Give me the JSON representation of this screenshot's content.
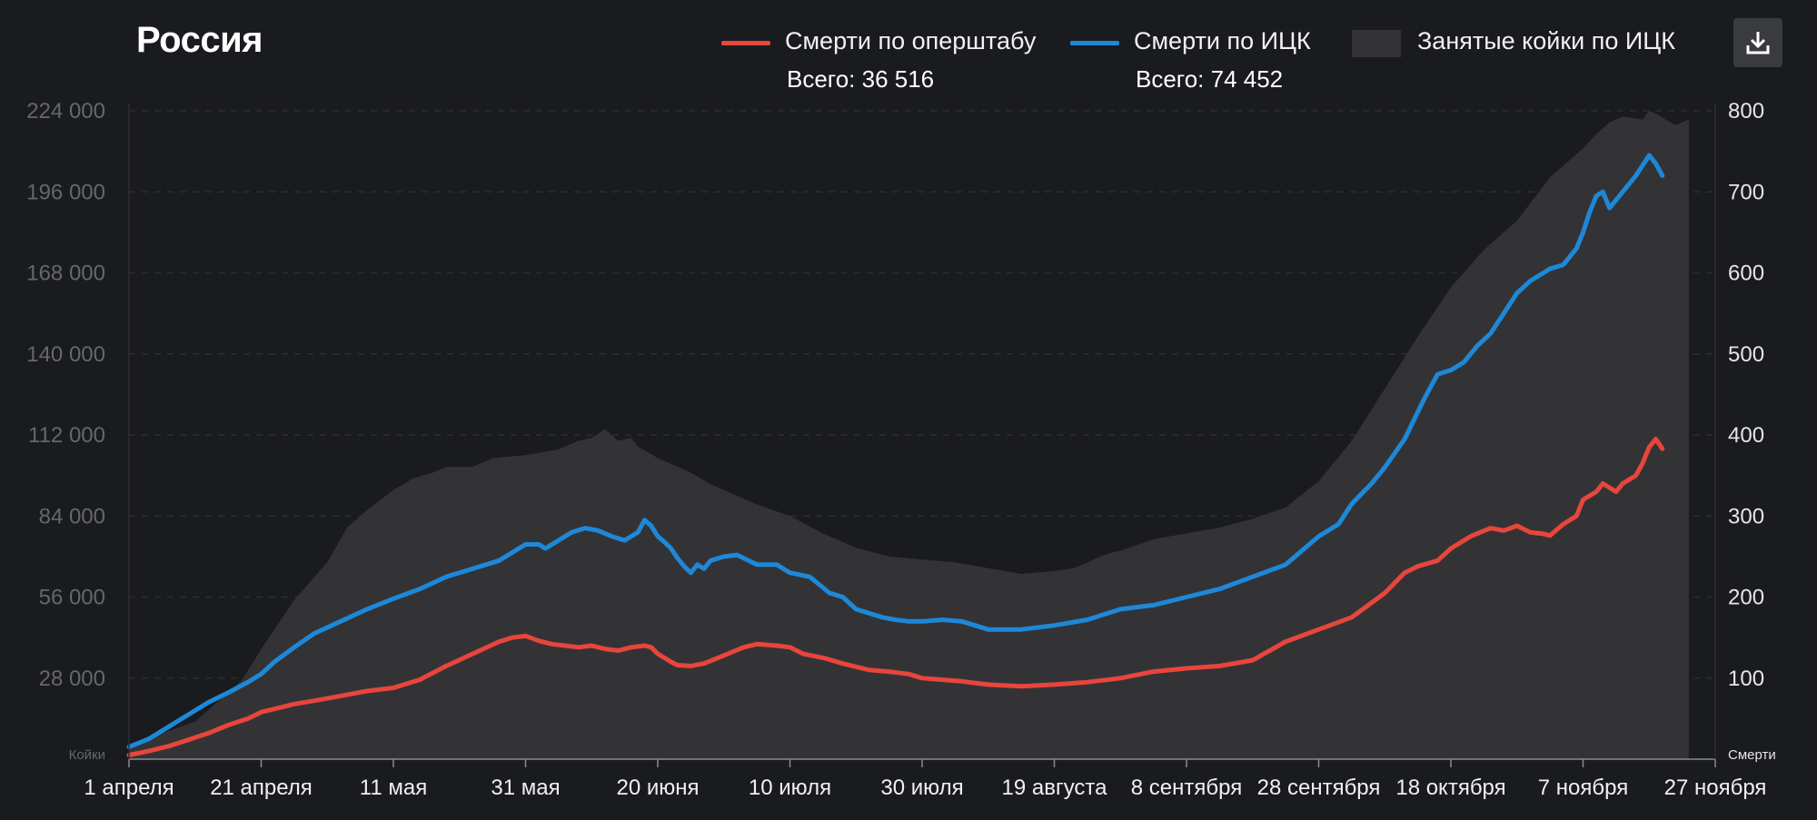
{
  "title": "Россия",
  "legend": {
    "items": [
      {
        "label": "Смерти по оперштабу",
        "color": "#e8453c",
        "kind": "line",
        "total": "Всего: 36 516"
      },
      {
        "label": "Смерти по ИЦК",
        "color": "#1e88d8",
        "kind": "line",
        "total": "Всего: 74 452"
      },
      {
        "label": "Занятые койки по ИЦК",
        "color": "#333336",
        "kind": "area",
        "total": ""
      }
    ]
  },
  "download_icon": "download-icon",
  "chart_data": {
    "type": "line",
    "xlabel": "",
    "left_axis": {
      "label": "Койки",
      "ticks": [
        "28 000",
        "56 000",
        "84 000",
        "112 000",
        "140 000",
        "168 000",
        "196 000",
        "224 000"
      ],
      "range": [
        0,
        224000
      ]
    },
    "right_axis": {
      "label": "Смерти",
      "ticks": [
        "100",
        "200",
        "300",
        "400",
        "500",
        "600",
        "700",
        "800"
      ],
      "range": [
        0,
        800
      ]
    },
    "x_ticks": [
      "1 апреля",
      "21 апреля",
      "11 мая",
      "31 мая",
      "20 июня",
      "10 июля",
      "30 июля",
      "19 августа",
      "8 сентября",
      "28 сентября",
      "18 октября",
      "7 ноября",
      "27 ноября"
    ],
    "x_days": [
      0,
      20,
      40,
      60,
      80,
      100,
      120,
      140,
      160,
      180,
      200,
      220,
      240
    ],
    "x_range": [
      0,
      240
    ],
    "grid": true,
    "series": [
      {
        "name": "Занятые койки по ИЦК",
        "axis": "left",
        "type": "area",
        "color": "#333336",
        "x": [
          0,
          10,
          17,
          20,
          25,
          30,
          33,
          36,
          40,
          43,
          46,
          48,
          52,
          55,
          60,
          65,
          68,
          70,
          72,
          74,
          76,
          77,
          80,
          85,
          88,
          90,
          95,
          100,
          105,
          110,
          115,
          120,
          125,
          130,
          135,
          140,
          143,
          145,
          148,
          150,
          155,
          160,
          165,
          170,
          175,
          180,
          185,
          190,
          195,
          200,
          205,
          210,
          215,
          220,
          222,
          224,
          226,
          229,
          230,
          231,
          234,
          236
        ],
        "y": [
          5000,
          13000,
          27000,
          38000,
          55000,
          68000,
          80000,
          86000,
          93000,
          97000,
          99000,
          101000,
          101000,
          104000,
          105000,
          107000,
          110000,
          111000,
          114000,
          110000,
          111000,
          108000,
          104000,
          99000,
          95000,
          93000,
          88000,
          84000,
          78000,
          73000,
          70000,
          69000,
          68000,
          66000,
          64000,
          65000,
          66000,
          68000,
          71000,
          72000,
          76000,
          78000,
          80000,
          83000,
          87000,
          96000,
          110000,
          128000,
          146000,
          163000,
          176000,
          186000,
          201000,
          211000,
          216000,
          220000,
          222000,
          221000,
          224000,
          223000,
          219000,
          221000
        ]
      },
      {
        "name": "Смерти по ИЦК",
        "axis": "right",
        "type": "line",
        "color": "#1e88d8",
        "x": [
          0,
          3,
          6,
          9,
          12,
          15,
          18,
          20,
          22,
          25,
          28,
          32,
          36,
          40,
          44,
          48,
          52,
          56,
          60,
          62,
          63,
          65,
          67,
          69,
          71,
          73,
          75,
          77,
          78,
          79,
          80,
          81,
          82,
          83,
          84,
          85,
          86,
          87,
          88,
          90,
          92,
          95,
          98,
          100,
          103,
          106,
          108,
          110,
          112,
          114,
          116,
          118,
          120,
          123,
          126,
          128,
          130,
          135,
          140,
          145,
          150,
          155,
          160,
          165,
          170,
          175,
          180,
          183,
          185,
          188,
          190,
          193,
          196,
          198,
          200,
          202,
          204,
          206,
          208,
          210,
          212,
          214,
          215,
          217,
          219,
          220,
          221,
          222,
          223,
          224,
          225,
          226,
          228,
          230,
          231,
          232
        ],
        "y": [
          15,
          25,
          40,
          55,
          70,
          82,
          95,
          105,
          120,
          138,
          155,
          170,
          185,
          198,
          210,
          225,
          235,
          245,
          265,
          265,
          260,
          270,
          280,
          285,
          282,
          275,
          270,
          280,
          295,
          288,
          275,
          268,
          260,
          248,
          238,
          230,
          240,
          235,
          245,
          250,
          252,
          240,
          240,
          230,
          225,
          205,
          200,
          185,
          180,
          175,
          172,
          170,
          170,
          172,
          170,
          165,
          160,
          160,
          165,
          172,
          185,
          190,
          200,
          210,
          225,
          240,
          275,
          290,
          315,
          340,
          360,
          395,
          445,
          475,
          480,
          490,
          510,
          525,
          550,
          575,
          590,
          600,
          605,
          610,
          630,
          650,
          675,
          695,
          700,
          680,
          690,
          700,
          720,
          745,
          735,
          720
        ]
      },
      {
        "name": "Смерти по оперштабу",
        "axis": "right",
        "type": "line",
        "color": "#e8453c",
        "x": [
          0,
          3,
          6,
          9,
          12,
          15,
          18,
          20,
          22,
          25,
          28,
          32,
          36,
          40,
          44,
          48,
          52,
          56,
          58,
          60,
          62,
          64,
          66,
          68,
          70,
          72,
          74,
          76,
          78,
          79,
          80,
          81,
          82,
          83,
          85,
          87,
          90,
          93,
          95,
          98,
          100,
          102,
          105,
          108,
          110,
          112,
          115,
          118,
          120,
          123,
          126,
          128,
          130,
          135,
          140,
          145,
          150,
          155,
          160,
          165,
          170,
          175,
          180,
          185,
          190,
          193,
          195,
          198,
          200,
          203,
          206,
          208,
          210,
          212,
          214,
          215,
          217,
          219,
          220,
          221,
          222,
          223,
          225,
          226,
          228,
          229,
          230,
          231,
          232
        ],
        "y": [
          5,
          10,
          16,
          24,
          32,
          42,
          50,
          58,
          62,
          68,
          72,
          78,
          84,
          88,
          98,
          115,
          130,
          145,
          150,
          152,
          146,
          142,
          140,
          138,
          140,
          136,
          134,
          138,
          140,
          138,
          130,
          125,
          120,
          116,
          115,
          118,
          128,
          138,
          142,
          140,
          138,
          130,
          125,
          118,
          114,
          110,
          108,
          105,
          100,
          98,
          96,
          94,
          92,
          90,
          92,
          95,
          100,
          108,
          112,
          115,
          122,
          145,
          160,
          175,
          205,
          230,
          238,
          245,
          260,
          275,
          285,
          282,
          288,
          280,
          278,
          276,
          290,
          300,
          320,
          325,
          330,
          340,
          330,
          340,
          350,
          365,
          385,
          395,
          383
        ]
      }
    ]
  }
}
